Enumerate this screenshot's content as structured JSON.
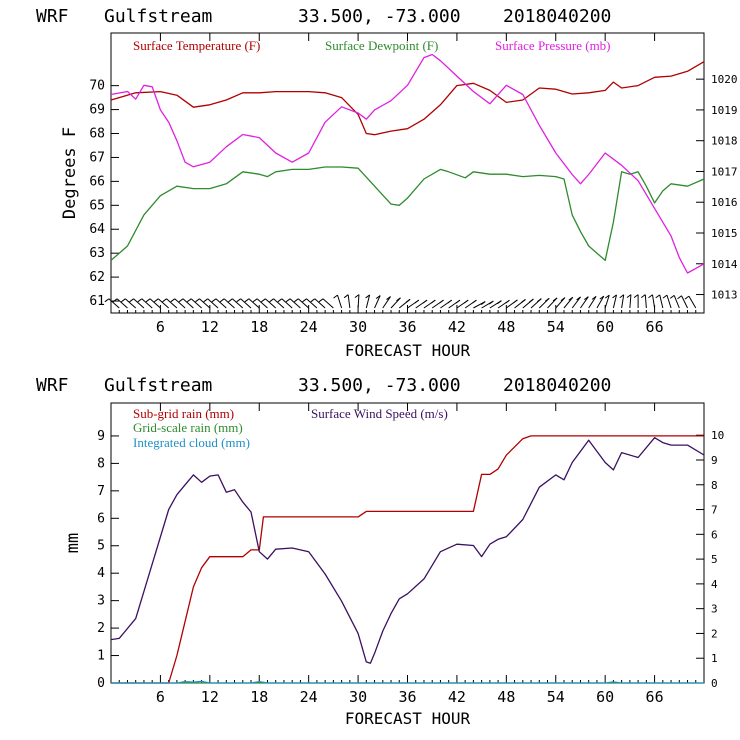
{
  "chart_data": [
    {
      "type": "line",
      "header": {
        "model": "WRF",
        "location": "Gulfstream",
        "coords": "33.500, -73.000",
        "init": "2018040200"
      },
      "xlabel": "FORECAST HOUR",
      "ylabel": "Degrees F",
      "xlim": [
        0,
        72
      ],
      "xticks": [
        "6",
        "12",
        "18",
        "24",
        "30",
        "36",
        "42",
        "48",
        "54",
        "60",
        "66"
      ],
      "ylim": [
        60.5,
        72.2
      ],
      "yticks": [
        "61",
        "62",
        "63",
        "64",
        "65",
        "66",
        "67",
        "68",
        "69",
        "70"
      ],
      "y2lim": [
        1012.4,
        1021.5
      ],
      "y2ticks": [
        "1013",
        "1014",
        "1015",
        "1016",
        "1017",
        "1018",
        "1019",
        "1020"
      ],
      "legend": [
        {
          "label": "Surface Temperature (F)",
          "color": "#b00000"
        },
        {
          "label": "Surface Dewpoint (F)",
          "color": "#2e8b2e"
        },
        {
          "label": "Surface Pressure (mb)",
          "color": "#e020e0"
        }
      ],
      "series": [
        {
          "name": "Surface Temperature (F)",
          "color": "#b00000",
          "axis": "left",
          "x": [
            0,
            3,
            6,
            8,
            10,
            12,
            14,
            16,
            18,
            20,
            22,
            24,
            26,
            28,
            30,
            31,
            32,
            34,
            36,
            38,
            40,
            42,
            44,
            46,
            48,
            50,
            52,
            54,
            56,
            58,
            60,
            61,
            62,
            64,
            66,
            68,
            70,
            72
          ],
          "y": [
            69.4,
            69.7,
            69.75,
            69.6,
            69.1,
            69.2,
            69.4,
            69.7,
            69.7,
            69.75,
            69.75,
            69.75,
            69.7,
            69.5,
            68.8,
            68.0,
            67.95,
            68.1,
            68.2,
            68.6,
            69.2,
            70.0,
            70.1,
            69.8,
            69.3,
            69.4,
            69.9,
            69.85,
            69.65,
            69.7,
            69.8,
            70.15,
            69.9,
            70.0,
            70.35,
            70.4,
            70.6,
            71.0
          ]
        },
        {
          "name": "Surface Dewpoint (F)",
          "color": "#2e8b2e",
          "axis": "left",
          "x": [
            0,
            2,
            4,
            6,
            8,
            10,
            12,
            14,
            16,
            18,
            19,
            20,
            22,
            24,
            26,
            28,
            30,
            32,
            34,
            35,
            36,
            38,
            40,
            41,
            43,
            44,
            46,
            48,
            50,
            52,
            54,
            55,
            56,
            57,
            58,
            60,
            61,
            62,
            63,
            64,
            65,
            66,
            67,
            68,
            70,
            72
          ],
          "y": [
            62.7,
            63.3,
            64.6,
            65.4,
            65.8,
            65.7,
            65.7,
            65.9,
            66.4,
            66.3,
            66.2,
            66.4,
            66.5,
            66.5,
            66.6,
            66.6,
            66.55,
            65.8,
            65.05,
            65.0,
            65.3,
            66.1,
            66.5,
            66.4,
            66.15,
            66.4,
            66.3,
            66.3,
            66.2,
            66.25,
            66.2,
            66.1,
            64.6,
            63.9,
            63.3,
            62.7,
            64.3,
            66.4,
            66.3,
            66.4,
            65.8,
            65.1,
            65.6,
            65.9,
            65.8,
            66.1
          ]
        },
        {
          "name": "Surface Pressure (mb)",
          "color": "#e020e0",
          "axis": "right",
          "x": [
            0,
            2,
            3,
            4,
            5,
            6,
            7,
            8,
            9,
            10,
            12,
            14,
            16,
            18,
            20,
            22,
            24,
            26,
            28,
            30,
            31,
            32,
            34,
            36,
            38,
            39,
            40,
            42,
            44,
            46,
            48,
            50,
            52,
            54,
            56,
            57,
            58,
            60,
            62,
            64,
            66,
            68,
            69,
            70,
            71,
            72
          ],
          "y": [
            1019.5,
            1019.6,
            1019.35,
            1019.8,
            1019.75,
            1019.0,
            1018.6,
            1018.0,
            1017.3,
            1017.15,
            1017.3,
            1017.8,
            1018.2,
            1018.1,
            1017.6,
            1017.3,
            1017.6,
            1018.6,
            1019.1,
            1018.9,
            1018.7,
            1019.0,
            1019.3,
            1019.8,
            1020.7,
            1020.8,
            1020.6,
            1020.1,
            1019.6,
            1019.2,
            1019.8,
            1019.5,
            1018.5,
            1017.6,
            1016.9,
            1016.6,
            1016.9,
            1017.6,
            1017.2,
            1016.7,
            1015.8,
            1014.9,
            1014.2,
            1013.7,
            1013.85,
            1014.0
          ]
        }
      ],
      "wind_barbs": true
    },
    {
      "type": "line",
      "header": {
        "model": "WRF",
        "location": "Gulfstream",
        "coords": "33.500, -73.000",
        "init": "2018040200"
      },
      "xlabel": "FORECAST HOUR",
      "ylabel": "mm",
      "xlim": [
        0,
        72
      ],
      "xticks": [
        "6",
        "12",
        "18",
        "24",
        "30",
        "36",
        "42",
        "48",
        "54",
        "60",
        "66"
      ],
      "ylim": [
        0,
        10.2
      ],
      "yticks": [
        "0",
        "1",
        "2",
        "3",
        "4",
        "5",
        "6",
        "7",
        "8",
        "9"
      ],
      "y2lim": [
        0,
        11.3
      ],
      "y2ticks": [
        "0",
        "1",
        "2",
        "3",
        "4",
        "5",
        "6",
        "7",
        "8",
        "9",
        "10"
      ],
      "legend": [
        {
          "label": "Sub-grid rain (mm)",
          "color": "#b00000"
        },
        {
          "label": "Grid-scale rain (mm)",
          "color": "#2e8b2e"
        },
        {
          "label": "Integrated cloud (mm)",
          "color": "#1e90c8"
        },
        {
          "label": "Surface Wind Speed (m/s)",
          "color": "#3a1060"
        }
      ],
      "series": [
        {
          "name": "Sub-grid rain (mm)",
          "color": "#b00000",
          "axis": "left",
          "x": [
            0,
            7,
            8,
            10,
            11,
            12,
            14,
            16,
            17,
            18,
            18.5,
            20,
            24,
            28,
            30,
            31,
            36,
            40,
            44,
            45,
            46,
            47,
            48,
            50,
            51,
            54,
            60,
            66,
            72
          ],
          "y": [
            0,
            0,
            1.0,
            3.5,
            4.2,
            4.6,
            4.6,
            4.6,
            4.85,
            4.85,
            6.05,
            6.05,
            6.05,
            6.05,
            6.05,
            6.25,
            6.25,
            6.25,
            6.25,
            7.6,
            7.6,
            7.8,
            8.3,
            8.9,
            9.0,
            9.0,
            9.0,
            9.0,
            9.0
          ]
        },
        {
          "name": "Grid-scale rain (mm)",
          "color": "#2e8b2e",
          "axis": "left",
          "x": [
            0,
            72
          ],
          "y": [
            0,
            0
          ]
        },
        {
          "name": "Integrated cloud (mm)",
          "color": "#1e90c8",
          "axis": "left",
          "x": [
            0,
            8,
            9,
            10,
            11,
            12,
            17,
            18,
            19,
            20,
            60,
            61,
            62,
            72
          ],
          "y": [
            0,
            0,
            0.05,
            0.03,
            0.06,
            0,
            0,
            0.05,
            0,
            0,
            0,
            0.04,
            0,
            0
          ]
        },
        {
          "name": "Surface Wind Speed (m/s)",
          "color": "#3a1060",
          "axis": "right",
          "x": [
            0,
            1,
            3,
            5,
            7,
            8,
            9,
            10,
            11,
            12,
            13,
            14,
            15,
            16,
            17,
            18,
            19,
            20,
            22,
            24,
            26,
            28,
            30,
            31,
            31.5,
            32,
            33,
            34,
            35,
            36,
            38,
            40,
            42,
            44,
            45,
            46,
            47,
            48,
            50,
            52,
            54,
            55,
            56,
            58,
            60,
            61,
            62,
            64,
            66,
            67,
            68,
            70,
            72
          ],
          "y": [
            1.75,
            1.8,
            2.6,
            4.8,
            7.0,
            7.6,
            8.0,
            8.4,
            8.1,
            8.35,
            8.4,
            7.7,
            7.8,
            7.3,
            6.9,
            5.3,
            5.0,
            5.4,
            5.45,
            5.3,
            4.4,
            3.3,
            2.0,
            0.85,
            0.8,
            1.2,
            2.1,
            2.8,
            3.4,
            3.6,
            4.2,
            5.3,
            5.6,
            5.55,
            5.1,
            5.6,
            5.8,
            5.9,
            6.6,
            7.9,
            8.4,
            8.2,
            8.9,
            9.8,
            8.9,
            8.6,
            9.3,
            9.1,
            9.9,
            9.7,
            9.6,
            9.6,
            9.2
          ]
        }
      ]
    }
  ]
}
